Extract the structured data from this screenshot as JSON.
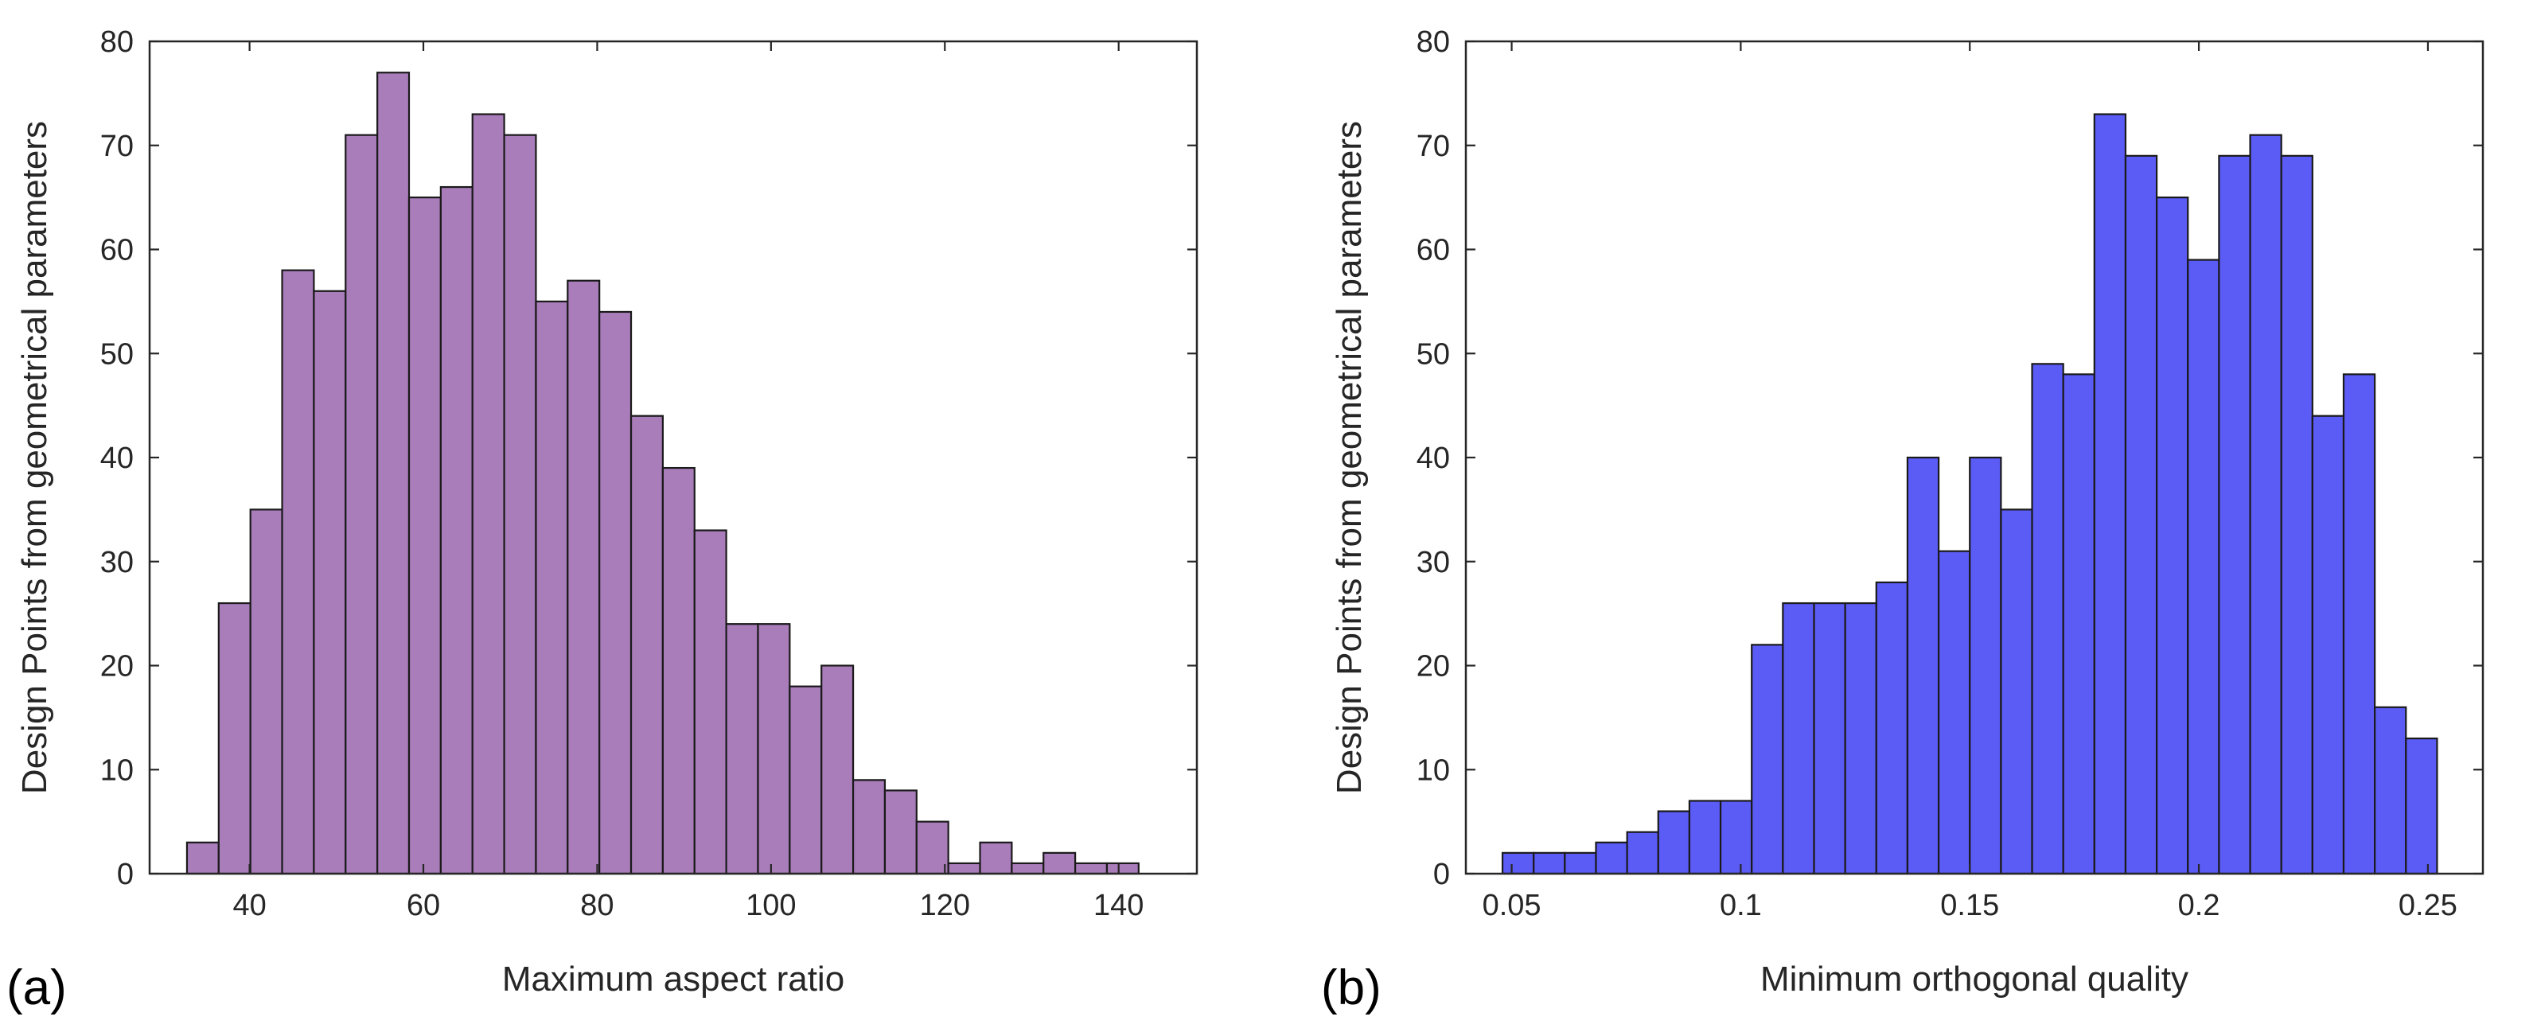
{
  "chart_data": [
    {
      "type": "bar",
      "panel_label": "(a)",
      "xlabel": "Maximum aspect ratio",
      "ylabel": "Design Points from geometrical parameters",
      "xlim": [
        28.5,
        149
      ],
      "ylim": [
        0,
        80
      ],
      "xticks": [
        40,
        60,
        80,
        100,
        120,
        140
      ],
      "xtick_labels": [
        "40",
        "60",
        "80",
        "100",
        "120",
        "140"
      ],
      "yticks": [
        0,
        10,
        20,
        30,
        40,
        50,
        60,
        70,
        80
      ],
      "ytick_labels": [
        "0",
        "10",
        "20",
        "30",
        "40",
        "50",
        "60",
        "70",
        "80"
      ],
      "bin_start": 32.8,
      "bin_width": 3.65,
      "values": [
        3,
        26,
        35,
        58,
        56,
        71,
        77,
        65,
        66,
        73,
        71,
        55,
        57,
        54,
        44,
        39,
        33,
        24,
        24,
        18,
        20,
        9,
        8,
        5,
        1,
        3,
        1,
        2,
        1,
        1
      ],
      "color": "#a97cba",
      "edge_color": "#1a1a1a"
    },
    {
      "type": "bar",
      "panel_label": "(b)",
      "xlabel": "Minimum orthogonal quality",
      "ylabel": "Design Points from geometrical parameters",
      "xlim": [
        0.04,
        0.262
      ],
      "ylim": [
        0,
        80
      ],
      "xticks": [
        0.05,
        0.1,
        0.15,
        0.2,
        0.25
      ],
      "xtick_labels": [
        "0.05",
        "0.1",
        "0.15",
        "0.2",
        "0.25"
      ],
      "yticks": [
        0,
        10,
        20,
        30,
        40,
        50,
        60,
        70,
        80
      ],
      "ytick_labels": [
        "0",
        "10",
        "20",
        "30",
        "40",
        "50",
        "60",
        "70",
        "80"
      ],
      "bin_start": 0.048,
      "bin_width": 0.0068,
      "values": [
        2,
        2,
        2,
        3,
        4,
        6,
        7,
        7,
        22,
        26,
        26,
        26,
        28,
        40,
        31,
        40,
        35,
        49,
        48,
        73,
        69,
        65,
        59,
        69,
        71,
        69,
        44,
        48,
        16,
        13
      ],
      "color": "#5b5bf5",
      "edge_color": "#1a1a1a"
    }
  ]
}
